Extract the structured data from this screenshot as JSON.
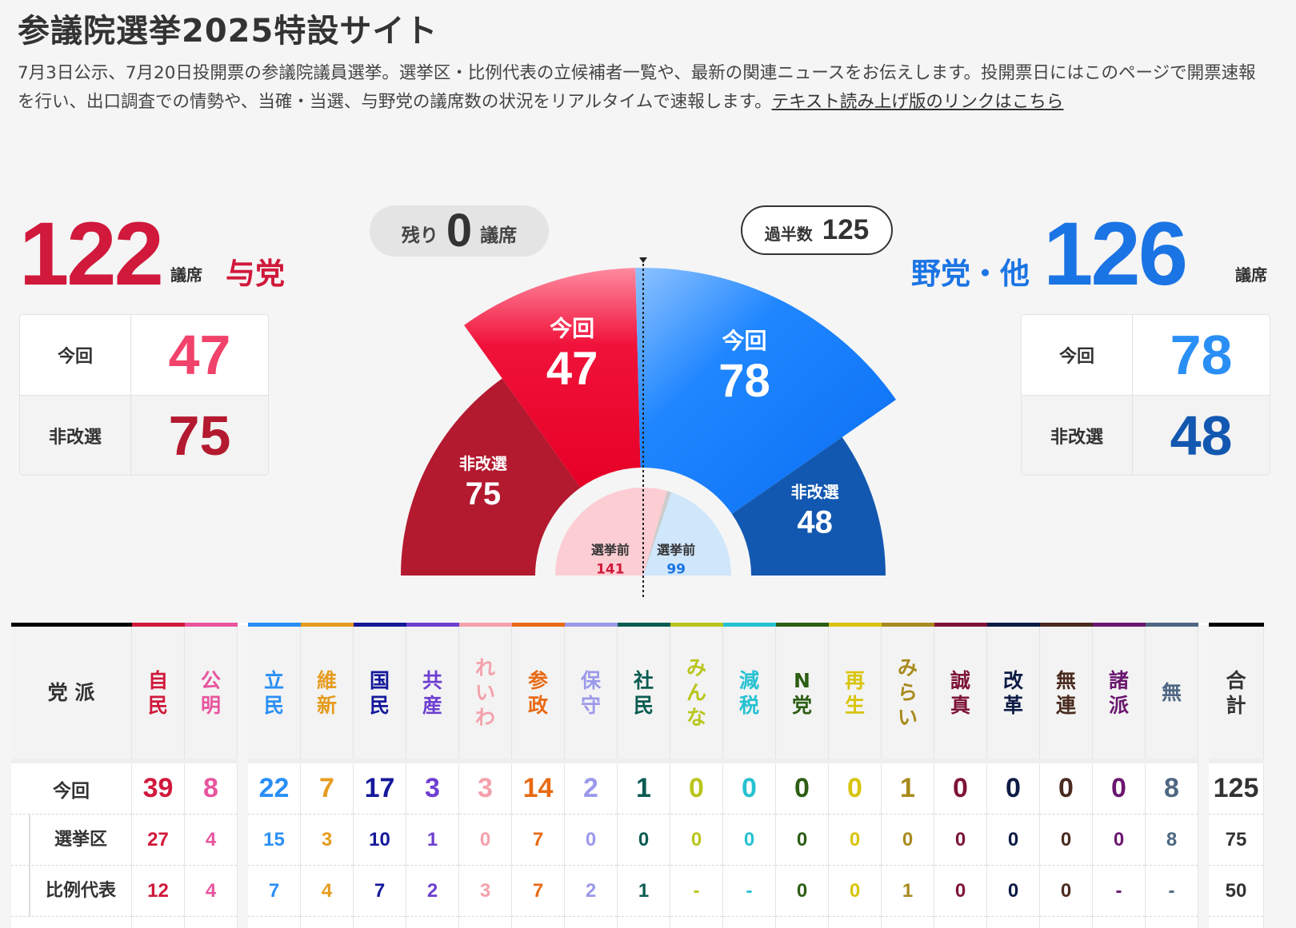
{
  "header": {
    "title": "参議院選挙2025特設サイト",
    "description": "7月3日公示、7月20日投開票の参議院議員選挙。選挙区・比例代表の立候補者一覧や、最新の関連ニュースをお伝えします。投開票日にはこのページで開票速報を行い、出口調査での情勢や、当確・当選、与野党の議席数の状況をリアルタイムで速報します。",
    "text_link": "テキスト読み上げ版のリンクはこちら"
  },
  "colors": {
    "ruling": "#d0193b",
    "ruling_light": "#f0426a",
    "ruling_dark": "#b3192f",
    "opposition": "#1b74e4",
    "opposition_light": "#2a8ff5",
    "opposition_dark": "#1358b0"
  },
  "ruling": {
    "name": "与党",
    "total": "122",
    "unit": "議席",
    "current_label": "今回",
    "current": "47",
    "holdover_label": "非改選",
    "holdover": "75"
  },
  "opposition": {
    "name": "野党・他",
    "total": "126",
    "unit": "議席",
    "current_label": "今回",
    "current": "78",
    "holdover_label": "非改選",
    "holdover": "48"
  },
  "remaining": {
    "prefix": "残り",
    "value": "0",
    "suffix": "議席"
  },
  "majority": {
    "label": "過半数",
    "value": "125"
  },
  "chart_data": {
    "type": "pie",
    "title": "",
    "total_seats": 248,
    "majority": 125,
    "segments": [
      {
        "side": "ruling",
        "label": "非改選",
        "value": 75
      },
      {
        "side": "ruling",
        "label": "今回",
        "value": 47
      },
      {
        "side": "opposition",
        "label": "今回",
        "value": 78
      },
      {
        "side": "opposition",
        "label": "非改選",
        "value": 48
      }
    ],
    "pre_election": [
      {
        "side": "ruling",
        "label": "選挙前",
        "value": 141
      },
      {
        "side": "opposition",
        "label": "選挙前",
        "value": 99
      }
    ]
  },
  "table": {
    "header_label": "党 派",
    "total_label": "合計",
    "rows": [
      {
        "label": "今回",
        "total": "125"
      },
      {
        "label": "選挙区",
        "total": "75"
      },
      {
        "label": "比例代表",
        "total": "50"
      }
    ],
    "ruling_parties": [
      {
        "name": "自民",
        "color": "#d0193b",
        "values": [
          "39",
          "27",
          "12"
        ]
      },
      {
        "name": "公明",
        "color": "#e8559e",
        "values": [
          "8",
          "4",
          "4"
        ]
      }
    ],
    "other_parties": [
      {
        "name": "立民",
        "color": "#2a8ff5",
        "values": [
          "22",
          "15",
          "7"
        ]
      },
      {
        "name": "維新",
        "color": "#e69c1f",
        "values": [
          "7",
          "3",
          "4"
        ]
      },
      {
        "name": "国民",
        "color": "#15199a",
        "values": [
          "17",
          "10",
          "7"
        ]
      },
      {
        "name": "共産",
        "color": "#6e3fd1",
        "values": [
          "3",
          "1",
          "2"
        ]
      },
      {
        "name": "れいわ",
        "color": "#f4a1ac",
        "values": [
          "3",
          "0",
          "3"
        ]
      },
      {
        "name": "参政",
        "color": "#e86a14",
        "values": [
          "14",
          "7",
          "7"
        ]
      },
      {
        "name": "保守",
        "color": "#9b99ea",
        "values": [
          "2",
          "0",
          "2"
        ]
      },
      {
        "name": "社民",
        "color": "#0b5c52",
        "values": [
          "1",
          "0",
          "1"
        ]
      },
      {
        "name": "みんな",
        "color": "#b9c51c",
        "values": [
          "0",
          "0",
          "-"
        ]
      },
      {
        "name": "減税",
        "color": "#26c1d1",
        "values": [
          "0",
          "0",
          "-"
        ]
      },
      {
        "name": "N党",
        "color": "#2c5e14",
        "values": [
          "0",
          "0",
          "0"
        ]
      },
      {
        "name": "再生",
        "color": "#d8c40d",
        "values": [
          "0",
          "0",
          "0"
        ]
      },
      {
        "name": "みらい",
        "color": "#a88a1e",
        "values": [
          "1",
          "0",
          "1"
        ]
      },
      {
        "name": "誠真",
        "color": "#7e1437",
        "values": [
          "0",
          "0",
          "0"
        ]
      },
      {
        "name": "改革",
        "color": "#0d1b45",
        "values": [
          "0",
          "0",
          "0"
        ]
      },
      {
        "name": "無連",
        "color": "#4a2b1f",
        "values": [
          "0",
          "0",
          "0"
        ]
      },
      {
        "name": "諸派",
        "color": "#6a176f",
        "values": [
          "0",
          "0",
          "-"
        ]
      },
      {
        "name": "無",
        "color": "#4e6782",
        "values": [
          "8",
          "8",
          "-"
        ]
      }
    ]
  }
}
